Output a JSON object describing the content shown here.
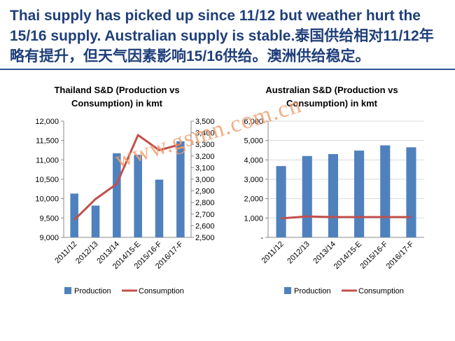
{
  "slide": {
    "title": "Thai supply has picked up since 11/12 but weather hurt the 15/16 supply. Australian supply is stable.泰国供给相对11/12年略有提升，但天气因素影响15/16供给。澳洲供给稳定。",
    "watermark": "www.gsmn.com.cn"
  },
  "colors": {
    "title": "#1f3f7a",
    "rule": "#2e5597",
    "bar": "#4f81bd",
    "line": "#c0504d",
    "grid": "#d9d9d9",
    "watermark": "#f3a070"
  },
  "chart_data": [
    {
      "type": "bar",
      "title": "Thailand S&D (Production vs Consumption) in kmt",
      "title_lines": [
        "Thailand S&D (Production vs",
        "Consumption) in kmt"
      ],
      "categories": [
        "2011/12",
        "2012/13",
        "2013/14",
        "2014/15-E",
        "2015/16-F",
        "2016/17-F"
      ],
      "series": [
        {
          "name": "Production",
          "type": "bar",
          "axis": "left",
          "values": [
            10130,
            9820,
            11170,
            11130,
            10490,
            11480
          ]
        },
        {
          "name": "Consumption",
          "type": "line",
          "axis": "right",
          "values": [
            2650,
            2830,
            2960,
            3380,
            3250,
            3300
          ]
        }
      ],
      "ylim": [
        9000,
        12000
      ],
      "yticks": [
        "9,000",
        "9,500",
        "10,000",
        "10,500",
        "11,000",
        "11,500",
        "12,000"
      ],
      "y2lim": [
        2500,
        3500
      ],
      "y2ticks": [
        "2,500",
        "2,600",
        "2,700",
        "2,800",
        "2,900",
        "3,000",
        "3,100",
        "3,200",
        "3,300",
        "3,400",
        "3,500"
      ],
      "grid": false,
      "legend": "bottom",
      "legend_labels": [
        "Production",
        "Consumption"
      ]
    },
    {
      "type": "bar",
      "title": "Australian S&D (Production vs Consumption) in kmt",
      "title_lines": [
        "Australian S&D (Production vs",
        "Consumption) in kmt"
      ],
      "categories": [
        "2011/12",
        "2012/13",
        "2013/14",
        "2014/15-E",
        "2015/16-F",
        "2016/17-F"
      ],
      "series": [
        {
          "name": "Production",
          "type": "bar",
          "axis": "left",
          "values": [
            3680,
            4200,
            4300,
            4480,
            4750,
            4650
          ]
        },
        {
          "name": "Consumption",
          "type": "line",
          "axis": "left",
          "values": [
            980,
            1080,
            1050,
            1050,
            1050,
            1050
          ]
        }
      ],
      "ylim": [
        0,
        6000
      ],
      "yticks": [
        "-",
        "1,000",
        "2,000",
        "3,000",
        "4,000",
        "5,000",
        "6,000"
      ],
      "grid": true,
      "legend": "bottom",
      "legend_labels": [
        "Production",
        "Consumption"
      ]
    }
  ]
}
